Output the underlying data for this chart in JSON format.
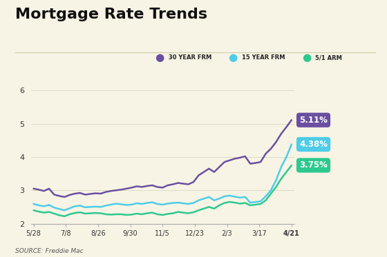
{
  "title": "Mortgage Rate Trends",
  "background_color": "#f7f4e5",
  "source_text": "SOURCE: Freddie Mac",
  "x_labels": [
    "5/28",
    "7/8",
    "8/26",
    "9/30",
    "11/5",
    "12/23",
    "2/3",
    "3/17",
    "4/21"
  ],
  "y_ticks": [
    2,
    3,
    4,
    5,
    6
  ],
  "ylim": [
    2.0,
    6.4
  ],
  "series_order": [
    "30 YEAR FRM",
    "15 YEAR FRM",
    "5/1 ARM"
  ],
  "series": {
    "30 YEAR FRM": {
      "color": "#6b4fa0",
      "end_value": "5.11%",
      "label_bg": "#6b4fa0",
      "data": [
        3.05,
        3.02,
        2.98,
        3.05,
        2.87,
        2.83,
        2.8,
        2.86,
        2.9,
        2.92,
        2.87,
        2.89,
        2.91,
        2.9,
        2.95,
        2.98,
        3.0,
        3.02,
        3.05,
        3.08,
        3.12,
        3.1,
        3.13,
        3.15,
        3.1,
        3.08,
        3.15,
        3.18,
        3.22,
        3.2,
        3.18,
        3.25,
        3.45,
        3.55,
        3.65,
        3.55,
        3.7,
        3.85,
        3.9,
        3.95,
        3.98,
        4.02,
        3.8,
        3.82,
        3.85,
        4.1,
        4.25,
        4.45,
        4.7,
        4.9,
        5.11
      ]
    },
    "15 YEAR FRM": {
      "color": "#4ecce8",
      "end_value": "4.38%",
      "label_bg": "#4ecce8",
      "data": [
        2.59,
        2.55,
        2.52,
        2.56,
        2.48,
        2.44,
        2.4,
        2.46,
        2.52,
        2.54,
        2.49,
        2.5,
        2.51,
        2.5,
        2.54,
        2.57,
        2.6,
        2.58,
        2.56,
        2.57,
        2.61,
        2.59,
        2.62,
        2.64,
        2.59,
        2.57,
        2.6,
        2.62,
        2.63,
        2.61,
        2.59,
        2.62,
        2.7,
        2.75,
        2.8,
        2.7,
        2.75,
        2.82,
        2.84,
        2.81,
        2.78,
        2.8,
        2.63,
        2.65,
        2.67,
        2.82,
        3.0,
        3.3,
        3.7,
        4.0,
        4.38
      ]
    },
    "5/1 ARM": {
      "color": "#2dc98e",
      "end_value": "3.75%",
      "label_bg": "#2dc98e",
      "data": [
        2.4,
        2.36,
        2.33,
        2.35,
        2.3,
        2.25,
        2.22,
        2.28,
        2.32,
        2.34,
        2.3,
        2.31,
        2.32,
        2.31,
        2.28,
        2.27,
        2.28,
        2.28,
        2.26,
        2.27,
        2.3,
        2.28,
        2.31,
        2.33,
        2.28,
        2.26,
        2.29,
        2.31,
        2.35,
        2.33,
        2.31,
        2.34,
        2.4,
        2.45,
        2.5,
        2.45,
        2.55,
        2.62,
        2.65,
        2.63,
        2.6,
        2.62,
        2.55,
        2.57,
        2.59,
        2.7,
        2.9,
        3.1,
        3.35,
        3.55,
        3.75
      ]
    }
  },
  "legend": {
    "entries": [
      "30 YEAR FRM",
      "15 YEAR FRM",
      "5/1 ARM"
    ],
    "colors": [
      "#6b4fa0",
      "#4ecce8",
      "#2dc98e"
    ]
  },
  "title_fontsize": 16,
  "tick_fontsize": 7,
  "line_width": 1.8
}
